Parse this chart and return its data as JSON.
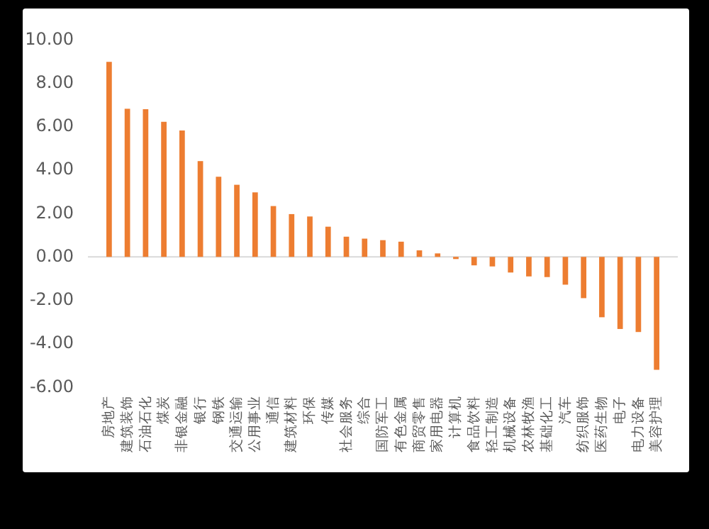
{
  "chart_data": {
    "type": "bar",
    "categories": [
      "房地产",
      "建筑装饰",
      "石油石化",
      "煤炭",
      "非银金融",
      "银行",
      "钢铁",
      "交通运输",
      "公用事业",
      "通信",
      "建筑材料",
      "环保",
      "传媒",
      "社会服务",
      "综合",
      "国防军工",
      "有色金属",
      "商贸零售",
      "家用电器",
      "计算机",
      "食品饮料",
      "轻工制造",
      "机械设备",
      "农林牧渔",
      "基础化工",
      "汽车",
      "纺织服饰",
      "医药生物",
      "电子",
      "电力设备",
      "美容护理"
    ],
    "values": [
      8.98,
      6.82,
      6.8,
      6.22,
      5.82,
      4.41,
      3.69,
      3.32,
      2.97,
      2.34,
      1.97,
      1.86,
      1.39,
      0.93,
      0.84,
      0.77,
      0.7,
      0.3,
      0.16,
      -0.1,
      -0.39,
      -0.44,
      -0.72,
      -0.9,
      -0.93,
      -1.28,
      -1.9,
      -2.78,
      -3.32,
      -3.46,
      -5.2
    ],
    "color": "#ed7d31",
    "ylim": [
      -6,
      10
    ],
    "yticks": [
      {
        "value": -6,
        "label": "-6.00"
      },
      {
        "value": -4,
        "label": "-4.00"
      },
      {
        "value": -2,
        "label": "-2.00"
      },
      {
        "value": 0,
        "label": "0.00"
      },
      {
        "value": 2,
        "label": "2.00"
      },
      {
        "value": 4,
        "label": "4.00"
      },
      {
        "value": 6,
        "label": "6.00"
      },
      {
        "value": 8,
        "label": "8.00"
      },
      {
        "value": 10,
        "label": "10.00"
      }
    ]
  }
}
